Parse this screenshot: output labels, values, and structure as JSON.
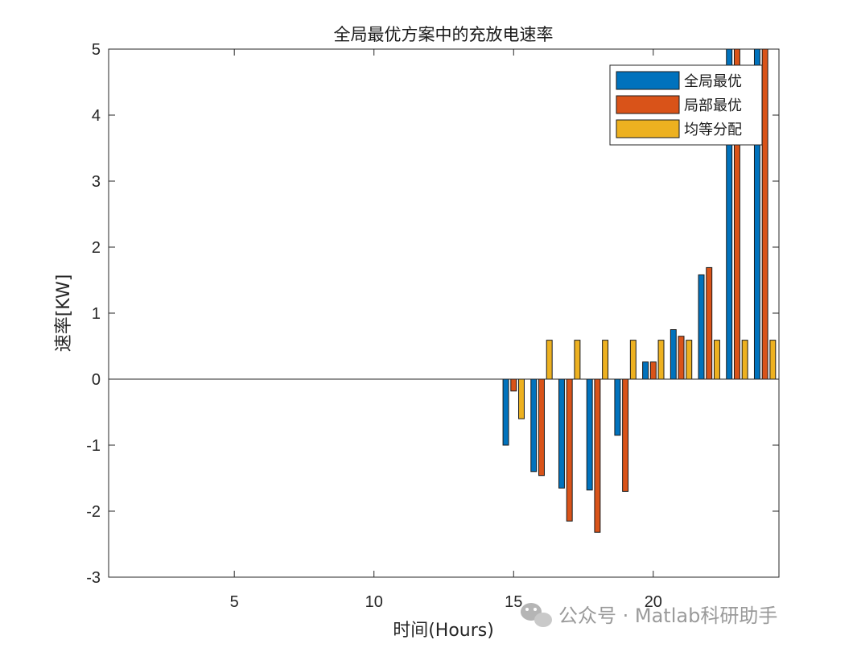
{
  "chart_data": {
    "type": "bar",
    "title": "全局最优方案中的充放电速率",
    "xlabel": "时间(Hours)",
    "ylabel": "速率[KW]",
    "xlim": [
      0.5,
      24.5
    ],
    "ylim": [
      -3,
      5
    ],
    "xticks": [
      5,
      10,
      15,
      20
    ],
    "yticks": [
      -3,
      -2,
      -1,
      0,
      1,
      2,
      3,
      4,
      5
    ],
    "x": [
      1,
      2,
      3,
      4,
      5,
      6,
      7,
      8,
      9,
      10,
      11,
      12,
      13,
      14,
      15,
      16,
      17,
      18,
      19,
      20,
      21,
      22,
      23,
      24
    ],
    "series": [
      {
        "name": "全局最优",
        "color": "#0072BD",
        "values": [
          0,
          0,
          0,
          0,
          0,
          0,
          0,
          0,
          0,
          0,
          0,
          0,
          0,
          0,
          -1.0,
          -1.4,
          -1.65,
          -1.68,
          -0.85,
          0.26,
          0.75,
          1.58,
          5.5,
          5.5
        ]
      },
      {
        "name": "局部最优",
        "color": "#D95319",
        "values": [
          0,
          0,
          0,
          0,
          0,
          0,
          0,
          0,
          0,
          0,
          0,
          0,
          0,
          0,
          -0.18,
          -1.46,
          -2.15,
          -2.32,
          -1.7,
          0.26,
          0.65,
          1.69,
          5.5,
          5.5
        ]
      },
      {
        "name": "均等分配",
        "color": "#EDB120",
        "values": [
          0,
          0,
          0,
          0,
          0,
          0,
          0,
          0,
          0,
          0,
          0,
          0,
          0,
          0,
          -0.6,
          0.59,
          0.59,
          0.59,
          0.59,
          0.59,
          0.59,
          0.59,
          0.59,
          0.59
        ]
      }
    ],
    "grid": false,
    "legend_position": "top-right"
  },
  "watermark": {
    "text": "公众号 · Matlab科研助手",
    "icon": "wechat-icon"
  }
}
